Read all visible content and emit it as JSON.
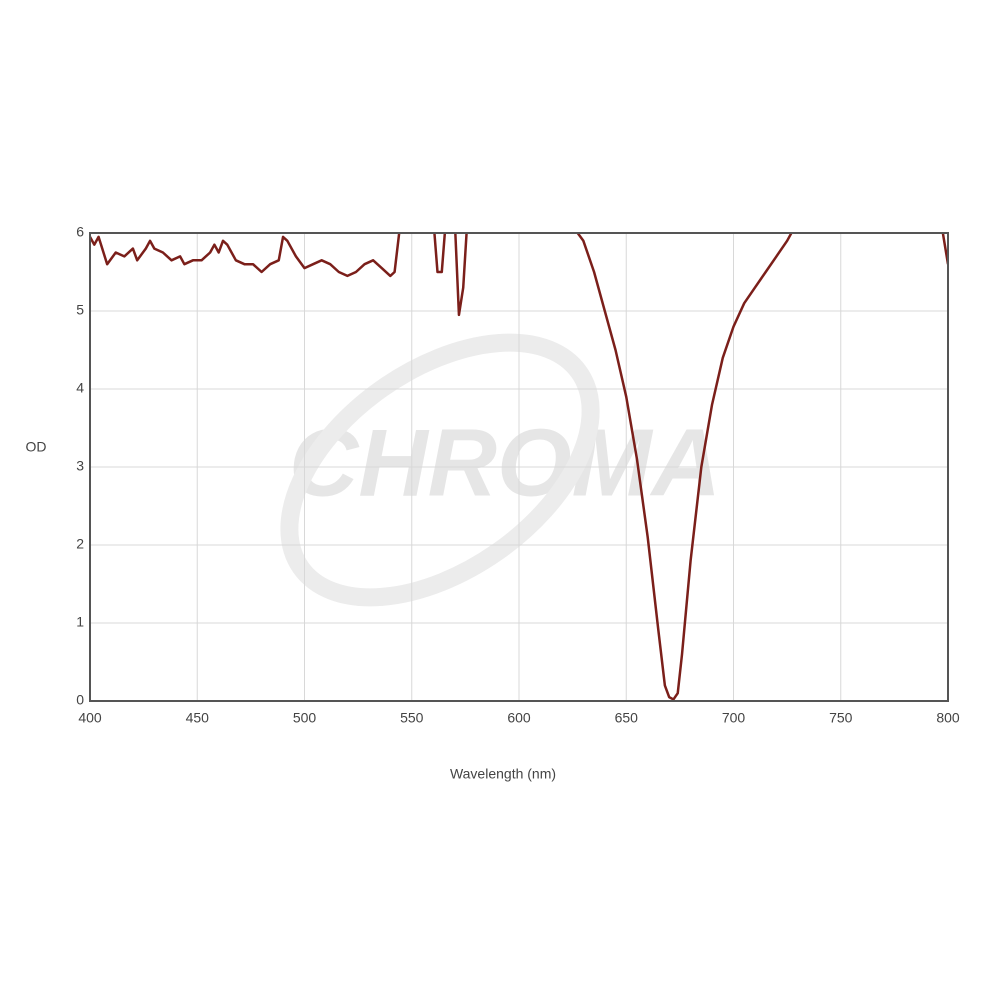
{
  "chart_data": {
    "type": "line",
    "watermark": "CHROMA",
    "xlabel": "Wavelength (nm)",
    "ylabel": "OD",
    "x": [
      400,
      402,
      404,
      408,
      412,
      416,
      420,
      422,
      426,
      428,
      430,
      434,
      438,
      442,
      444,
      448,
      452,
      456,
      458,
      460,
      462,
      464,
      468,
      472,
      476,
      480,
      484,
      488,
      490,
      492,
      496,
      500,
      504,
      508,
      512,
      516,
      520,
      524,
      528,
      532,
      536,
      540,
      542,
      545,
      550,
      560,
      562,
      564,
      566,
      568,
      570,
      572,
      574,
      576,
      600,
      626,
      630,
      635,
      640,
      645,
      650,
      655,
      660,
      665,
      668,
      670,
      672,
      674,
      676,
      680,
      685,
      690,
      695,
      700,
      705,
      710,
      715,
      720,
      725,
      728,
      760,
      797,
      800
    ],
    "series": [
      {
        "name": "OD",
        "color": "#7b1f1a",
        "values": [
          5.95,
          5.85,
          5.95,
          5.6,
          5.75,
          5.7,
          5.8,
          5.65,
          5.8,
          5.9,
          5.8,
          5.75,
          5.65,
          5.7,
          5.6,
          5.65,
          5.65,
          5.75,
          5.85,
          5.75,
          5.9,
          5.85,
          5.65,
          5.6,
          5.6,
          5.5,
          5.6,
          5.65,
          5.95,
          5.9,
          5.7,
          5.55,
          5.6,
          5.65,
          5.6,
          5.5,
          5.45,
          5.5,
          5.6,
          5.65,
          5.55,
          5.45,
          5.5,
          6.2,
          null,
          6.2,
          5.5,
          5.5,
          6.2,
          null,
          6.2,
          4.95,
          5.3,
          6.2,
          null,
          6.05,
          5.9,
          5.5,
          5.0,
          4.5,
          3.9,
          3.1,
          2.1,
          0.9,
          0.2,
          0.05,
          0.02,
          0.1,
          0.6,
          1.8,
          3.0,
          3.8,
          4.4,
          4.8,
          5.1,
          5.3,
          5.5,
          5.7,
          5.9,
          6.05,
          null,
          6.1,
          5.6
        ]
      }
    ],
    "xlim": [
      400,
      800
    ],
    "ylim": [
      0,
      6
    ],
    "xticks": [
      400,
      450,
      500,
      550,
      600,
      650,
      700,
      750,
      800
    ],
    "yticks": [
      0,
      1,
      2,
      3,
      4,
      5,
      6
    ],
    "grid": true
  }
}
